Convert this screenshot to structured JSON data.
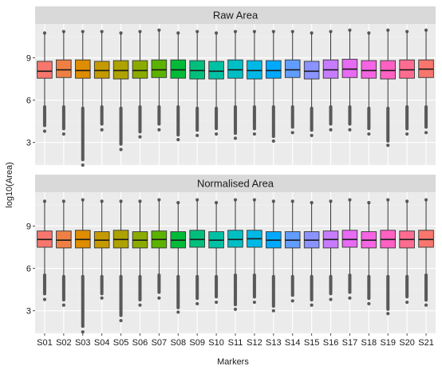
{
  "chart_data": {
    "type": "boxplot",
    "xlabel": "Markers",
    "ylabel": "log10(Area)",
    "categories": [
      "S01",
      "S02",
      "S03",
      "S04",
      "S05",
      "S06",
      "S07",
      "S08",
      "S09",
      "S10",
      "S11",
      "S12",
      "S13",
      "S14",
      "S15",
      "S16",
      "S17",
      "S18",
      "S19",
      "S20",
      "S21"
    ],
    "ylim": [
      1.4,
      11.4
    ],
    "yticks": [
      3,
      6,
      9
    ],
    "grid": true,
    "legend": "none",
    "colors": [
      "#F8766D",
      "#EE8044",
      "#DE8C00",
      "#C49A00",
      "#AEA200",
      "#8CAB00",
      "#5BB300",
      "#00BA38",
      "#00BF7D",
      "#00C1A3",
      "#00BFC4",
      "#00B8E5",
      "#00A9FF",
      "#619CFF",
      "#8B93FF",
      "#C77CFF",
      "#E76BF3",
      "#F564E3",
      "#FF61C3",
      "#FF6C91",
      "#F8766D"
    ],
    "panels": [
      {
        "title": "Raw Area",
        "series": [
          {
            "name": "S01",
            "q1": 7.55,
            "median": 8.05,
            "q3": 8.75,
            "lower": 5.6,
            "upper": 10.7,
            "out_low_min": 3.8,
            "out_high_max": 10.8
          },
          {
            "name": "S02",
            "q1": 7.6,
            "median": 8.15,
            "q3": 8.85,
            "lower": 5.6,
            "upper": 10.8,
            "out_low_min": 3.6,
            "out_high_max": 10.9
          },
          {
            "name": "S03",
            "q1": 7.55,
            "median": 8.1,
            "q3": 8.85,
            "lower": 5.5,
            "upper": 10.8,
            "out_low_min": 1.4,
            "out_high_max": 10.9
          },
          {
            "name": "S04",
            "q1": 7.55,
            "median": 8.1,
            "q3": 8.75,
            "lower": 5.6,
            "upper": 10.8,
            "out_low_min": 3.9,
            "out_high_max": 10.9
          },
          {
            "name": "S05",
            "q1": 7.5,
            "median": 8.1,
            "q3": 8.8,
            "lower": 5.5,
            "upper": 10.7,
            "out_low_min": 2.5,
            "out_high_max": 10.8
          },
          {
            "name": "S06",
            "q1": 7.55,
            "median": 8.1,
            "q3": 8.8,
            "lower": 5.6,
            "upper": 10.8,
            "out_low_min": 3.4,
            "out_high_max": 10.9
          },
          {
            "name": "S07",
            "q1": 7.6,
            "median": 8.15,
            "q3": 8.85,
            "lower": 5.6,
            "upper": 10.9,
            "out_low_min": 3.9,
            "out_high_max": 11.0
          },
          {
            "name": "S08",
            "q1": 7.55,
            "median": 8.15,
            "q3": 8.85,
            "lower": 5.6,
            "upper": 10.7,
            "out_low_min": 3.2,
            "out_high_max": 10.8
          },
          {
            "name": "S09",
            "q1": 7.5,
            "median": 8.1,
            "q3": 8.8,
            "lower": 5.5,
            "upper": 10.8,
            "out_low_min": 3.5,
            "out_high_max": 10.9
          },
          {
            "name": "S10",
            "q1": 7.5,
            "median": 8.05,
            "q3": 8.75,
            "lower": 5.5,
            "upper": 10.7,
            "out_low_min": 3.6,
            "out_high_max": 10.8
          },
          {
            "name": "S11",
            "q1": 7.55,
            "median": 8.15,
            "q3": 8.85,
            "lower": 5.6,
            "upper": 10.8,
            "out_low_min": 3.3,
            "out_high_max": 10.9
          },
          {
            "name": "S12",
            "q1": 7.5,
            "median": 8.1,
            "q3": 8.8,
            "lower": 5.6,
            "upper": 10.8,
            "out_low_min": 3.6,
            "out_high_max": 10.9
          },
          {
            "name": "S13",
            "q1": 7.55,
            "median": 8.1,
            "q3": 8.8,
            "lower": 5.6,
            "upper": 10.8,
            "out_low_min": 3.1,
            "out_high_max": 10.9
          },
          {
            "name": "S14",
            "q1": 7.6,
            "median": 8.15,
            "q3": 8.85,
            "lower": 5.6,
            "upper": 10.8,
            "out_low_min": 3.7,
            "out_high_max": 10.9
          },
          {
            "name": "S15",
            "q1": 7.5,
            "median": 8.05,
            "q3": 8.75,
            "lower": 5.5,
            "upper": 10.7,
            "out_low_min": 3.5,
            "out_high_max": 10.8
          },
          {
            "name": "S16",
            "q1": 7.55,
            "median": 8.15,
            "q3": 8.85,
            "lower": 5.6,
            "upper": 10.8,
            "out_low_min": 3.9,
            "out_high_max": 10.9
          },
          {
            "name": "S17",
            "q1": 7.6,
            "median": 8.2,
            "q3": 8.9,
            "lower": 5.6,
            "upper": 10.9,
            "out_low_min": 3.9,
            "out_high_max": 11.0
          },
          {
            "name": "S18",
            "q1": 7.55,
            "median": 8.1,
            "q3": 8.8,
            "lower": 5.5,
            "upper": 10.7,
            "out_low_min": 3.6,
            "out_high_max": 10.8
          },
          {
            "name": "S19",
            "q1": 7.5,
            "median": 8.1,
            "q3": 8.8,
            "lower": 5.5,
            "upper": 10.9,
            "out_low_min": 2.8,
            "out_high_max": 11.0
          },
          {
            "name": "S20",
            "q1": 7.55,
            "median": 8.15,
            "q3": 8.85,
            "lower": 5.6,
            "upper": 10.8,
            "out_low_min": 3.6,
            "out_high_max": 10.9
          },
          {
            "name": "S21",
            "q1": 7.6,
            "median": 8.2,
            "q3": 8.85,
            "lower": 5.6,
            "upper": 10.9,
            "out_low_min": 3.7,
            "out_high_max": 11.0
          }
        ]
      },
      {
        "title": "Normalised Area",
        "series": [
          {
            "name": "S01",
            "q1": 7.5,
            "median": 8.05,
            "q3": 8.65,
            "lower": 5.6,
            "upper": 10.7,
            "out_low_min": 3.8,
            "out_high_max": 10.8
          },
          {
            "name": "S02",
            "q1": 7.45,
            "median": 8.0,
            "q3": 8.65,
            "lower": 5.5,
            "upper": 10.7,
            "out_low_min": 3.4,
            "out_high_max": 10.8
          },
          {
            "name": "S03",
            "q1": 7.45,
            "median": 8.05,
            "q3": 8.7,
            "lower": 5.5,
            "upper": 10.8,
            "out_low_min": 1.5,
            "out_high_max": 10.9
          },
          {
            "name": "S04",
            "q1": 7.45,
            "median": 8.0,
            "q3": 8.6,
            "lower": 5.5,
            "upper": 10.7,
            "out_low_min": 3.9,
            "out_high_max": 10.8
          },
          {
            "name": "S05",
            "q1": 7.45,
            "median": 8.05,
            "q3": 8.7,
            "lower": 5.5,
            "upper": 10.7,
            "out_low_min": 2.3,
            "out_high_max": 10.8
          },
          {
            "name": "S06",
            "q1": 7.45,
            "median": 8.0,
            "q3": 8.6,
            "lower": 5.5,
            "upper": 10.7,
            "out_low_min": 3.4,
            "out_high_max": 10.8
          },
          {
            "name": "S07",
            "q1": 7.45,
            "median": 8.05,
            "q3": 8.65,
            "lower": 5.6,
            "upper": 10.8,
            "out_low_min": 3.9,
            "out_high_max": 10.9
          },
          {
            "name": "S08",
            "q1": 7.45,
            "median": 8.0,
            "q3": 8.6,
            "lower": 5.5,
            "upper": 10.6,
            "out_low_min": 2.9,
            "out_high_max": 10.7
          },
          {
            "name": "S09",
            "q1": 7.5,
            "median": 8.05,
            "q3": 8.7,
            "lower": 5.5,
            "upper": 10.8,
            "out_low_min": 3.5,
            "out_high_max": 10.9
          },
          {
            "name": "S10",
            "q1": 7.45,
            "median": 8.0,
            "q3": 8.6,
            "lower": 5.5,
            "upper": 10.6,
            "out_low_min": 3.6,
            "out_high_max": 10.7
          },
          {
            "name": "S11",
            "q1": 7.5,
            "median": 8.05,
            "q3": 8.7,
            "lower": 5.6,
            "upper": 10.8,
            "out_low_min": 3.1,
            "out_high_max": 10.9
          },
          {
            "name": "S12",
            "q1": 7.5,
            "median": 8.1,
            "q3": 8.7,
            "lower": 5.6,
            "upper": 10.8,
            "out_low_min": 3.6,
            "out_high_max": 10.9
          },
          {
            "name": "S13",
            "q1": 7.45,
            "median": 8.0,
            "q3": 8.6,
            "lower": 5.5,
            "upper": 10.7,
            "out_low_min": 3.0,
            "out_high_max": 10.8
          },
          {
            "name": "S14",
            "q1": 7.45,
            "median": 8.0,
            "q3": 8.6,
            "lower": 5.5,
            "upper": 10.7,
            "out_low_min": 3.7,
            "out_high_max": 10.8
          },
          {
            "name": "S15",
            "q1": 7.45,
            "median": 8.0,
            "q3": 8.6,
            "lower": 5.5,
            "upper": 10.6,
            "out_low_min": 3.4,
            "out_high_max": 10.7
          },
          {
            "name": "S16",
            "q1": 7.45,
            "median": 8.05,
            "q3": 8.65,
            "lower": 5.5,
            "upper": 10.7,
            "out_low_min": 3.8,
            "out_high_max": 10.8
          },
          {
            "name": "S17",
            "q1": 7.5,
            "median": 8.05,
            "q3": 8.7,
            "lower": 5.6,
            "upper": 10.8,
            "out_low_min": 3.9,
            "out_high_max": 10.9
          },
          {
            "name": "S18",
            "q1": 7.45,
            "median": 8.0,
            "q3": 8.6,
            "lower": 5.5,
            "upper": 10.6,
            "out_low_min": 3.5,
            "out_high_max": 10.7
          },
          {
            "name": "S19",
            "q1": 7.45,
            "median": 8.05,
            "q3": 8.7,
            "lower": 5.5,
            "upper": 10.8,
            "out_low_min": 2.8,
            "out_high_max": 10.9
          },
          {
            "name": "S20",
            "q1": 7.45,
            "median": 8.05,
            "q3": 8.65,
            "lower": 5.5,
            "upper": 10.7,
            "out_low_min": 3.6,
            "out_high_max": 10.8
          },
          {
            "name": "S21",
            "q1": 7.5,
            "median": 8.05,
            "q3": 8.7,
            "lower": 5.6,
            "upper": 10.8,
            "out_low_min": 3.4,
            "out_high_max": 10.9
          }
        ]
      }
    ]
  }
}
